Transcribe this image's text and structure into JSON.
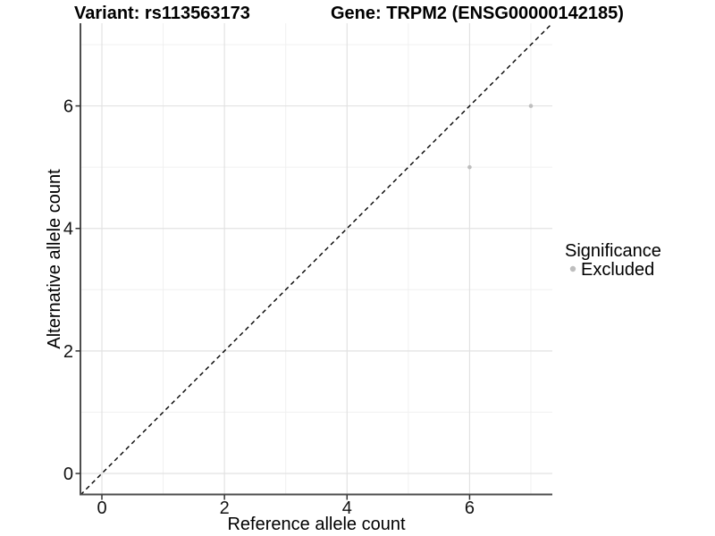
{
  "titles": {
    "variant": "Variant: rs113563173",
    "gene": "Gene: TRPM2 (ENSG00000142185)"
  },
  "chart_data": {
    "type": "scatter",
    "xlabel": "Reference allele count",
    "ylabel": "Alternative allele count",
    "xlim": [
      -0.35,
      7.35
    ],
    "ylim": [
      -0.35,
      7.35
    ],
    "xticks": [
      0,
      2,
      4,
      6
    ],
    "yticks": [
      0,
      2,
      4,
      6
    ],
    "minor_xticks": [
      1,
      3,
      5,
      7
    ],
    "minor_yticks": [
      1,
      3,
      5,
      7
    ],
    "grid": true,
    "identity_line": {
      "style": "dashed",
      "color": "#000000",
      "from": [
        -0.35,
        -0.35
      ],
      "to": [
        7.35,
        7.35
      ]
    },
    "series": [
      {
        "name": "Excluded",
        "color": "#bebebe",
        "points": [
          [
            6,
            5
          ],
          [
            7,
            6
          ]
        ]
      }
    ],
    "legend": {
      "title": "Significance",
      "position": "right",
      "items": [
        {
          "label": "Excluded",
          "color": "#bebebe"
        }
      ]
    }
  },
  "colors": {
    "background": "#ffffff",
    "grid_major": "#e2e2e2",
    "grid_minor": "#f0f0f0",
    "axis_line": "#4d4d4d",
    "point": "#bebebe",
    "identity_line": "#000000"
  }
}
